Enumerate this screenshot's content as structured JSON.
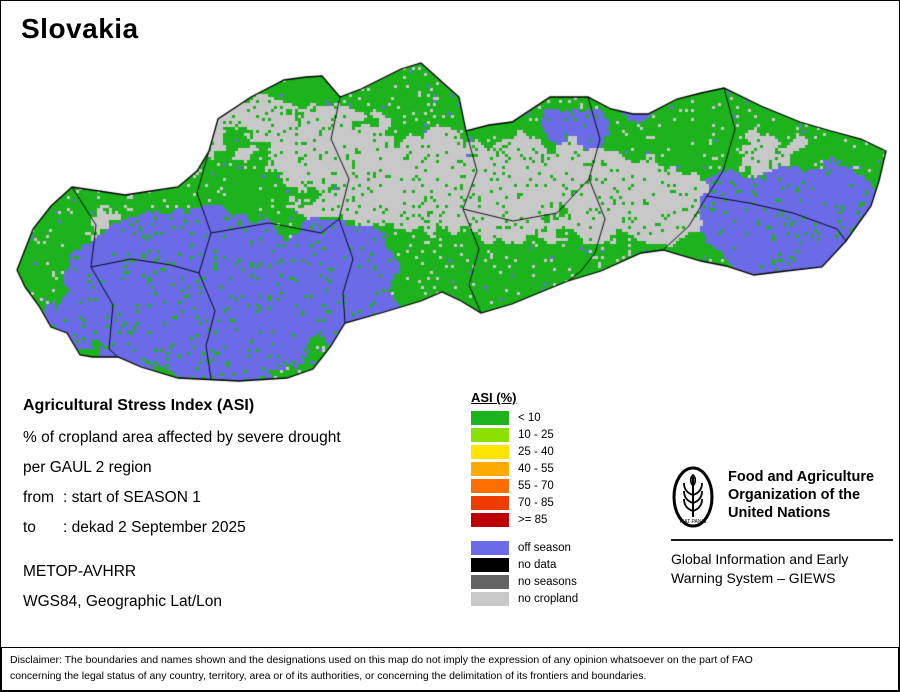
{
  "title": "Slovakia",
  "info": {
    "heading": "Agricultural Stress Index (ASI)",
    "subtitle1": "% of cropland area affected by severe drought",
    "subtitle2": "per GAUL 2 region",
    "from_label": "from",
    "from_value": ": start of SEASON 1",
    "to_label": "to",
    "to_value": ": dekad 2 September 2025",
    "sensor": "METOP-AVHRR",
    "projection": "WGS84, Geographic Lat/Lon"
  },
  "legend": {
    "title": "ASI (%)",
    "classes": [
      {
        "label": "< 10",
        "color": "#1db31d"
      },
      {
        "label": "10 - 25",
        "color": "#8ce000"
      },
      {
        "label": "25 - 40",
        "color": "#ffe400"
      },
      {
        "label": "40 - 55",
        "color": "#ffaa00"
      },
      {
        "label": "55 - 70",
        "color": "#ff6e00"
      },
      {
        "label": "70 - 85",
        "color": "#f03b00"
      },
      {
        "label": ">= 85",
        "color": "#bf0000"
      }
    ],
    "extra": [
      {
        "label": "off season",
        "color": "#6b6be8"
      },
      {
        "label": "no data",
        "color": "#000000"
      },
      {
        "label": "no seasons",
        "color": "#636363"
      },
      {
        "label": "no cropland",
        "color": "#c8c8c8"
      }
    ]
  },
  "fao": {
    "org_line1": "Food and Agriculture",
    "org_line2": "Organization of the",
    "org_line3": "United Nations",
    "giews_line1": "Global Information and Early",
    "giews_line2": "Warning System – GIEWS",
    "emblem_text": "FIAT PANIS"
  },
  "disclaimer": {
    "line1": "Disclaimer: The boundaries and names shown and the designations used on this map do not imply the expression of any opinion whatsoever on the part of FAO",
    "line2": "concerning the legal status of any country, territory, area or of its authorities, or concerning the delimitation of its frontiers and boundaries."
  }
}
